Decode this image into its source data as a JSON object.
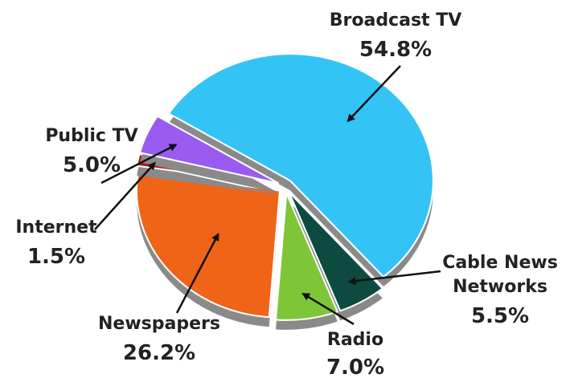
{
  "chart_data": {
    "type": "pie",
    "legend": "none",
    "slices": [
      {
        "label": "Broadcast TV",
        "value": 54.8,
        "value_label": "54.8%",
        "color": "#33c4f5"
      },
      {
        "label": "Cable News Networks",
        "label_lines": [
          "Cable News",
          "Networks"
        ],
        "value": 5.5,
        "value_label": "5.5%",
        "color": "#0d4a3f"
      },
      {
        "label": "Radio",
        "value": 7.0,
        "value_label": "7.0%",
        "color": "#7ec637"
      },
      {
        "label": "Newspapers",
        "value": 26.2,
        "value_label": "26.2%",
        "color": "#f06418"
      },
      {
        "label": "Internet",
        "value": 1.5,
        "value_label": "1.5%",
        "color": "#b01818"
      },
      {
        "label": "Public TV",
        "value": 5.0,
        "value_label": "5.0%",
        "color": "#9a5cf0"
      }
    ]
  }
}
